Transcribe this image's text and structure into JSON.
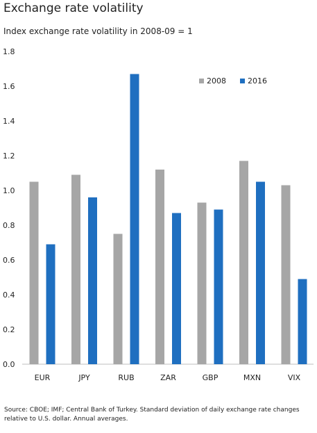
{
  "title": "Exchange rate volatility",
  "subtitle": "Index exchange rate volatility in  2008-09 = 1",
  "source": "Source: CBOE; IMF; Central Bank of Turkey. Standard deviation of daily exchange rate changes relative to U.S. dollar. Annual  averages.",
  "colors": {
    "series_2008": "#a6a6a6",
    "series_2016": "#1f6fc0",
    "text": "#222222"
  },
  "chart_data": {
    "type": "bar",
    "title": "Exchange rate volatility",
    "subtitle": "Index exchange rate volatility in  2008-09 = 1",
    "xlabel": "",
    "ylabel": "",
    "categories": [
      "EUR",
      "JPY",
      "RUB",
      "ZAR",
      "GBP",
      "MXN",
      "VIX"
    ],
    "series": [
      {
        "name": "2008",
        "values": [
          1.05,
          1.09,
          0.75,
          1.12,
          0.93,
          1.17,
          1.03
        ]
      },
      {
        "name": "2016",
        "values": [
          0.69,
          0.96,
          1.67,
          0.87,
          0.89,
          1.05,
          0.49
        ]
      }
    ],
    "ylim": [
      0,
      1.8
    ],
    "yticks": [
      "0.0",
      "0.2",
      "0.4",
      "0.6",
      "0.8",
      "1.0",
      "1.2",
      "1.4",
      "1.6",
      "1.8"
    ],
    "grid": false,
    "legend_position": "top-right"
  }
}
